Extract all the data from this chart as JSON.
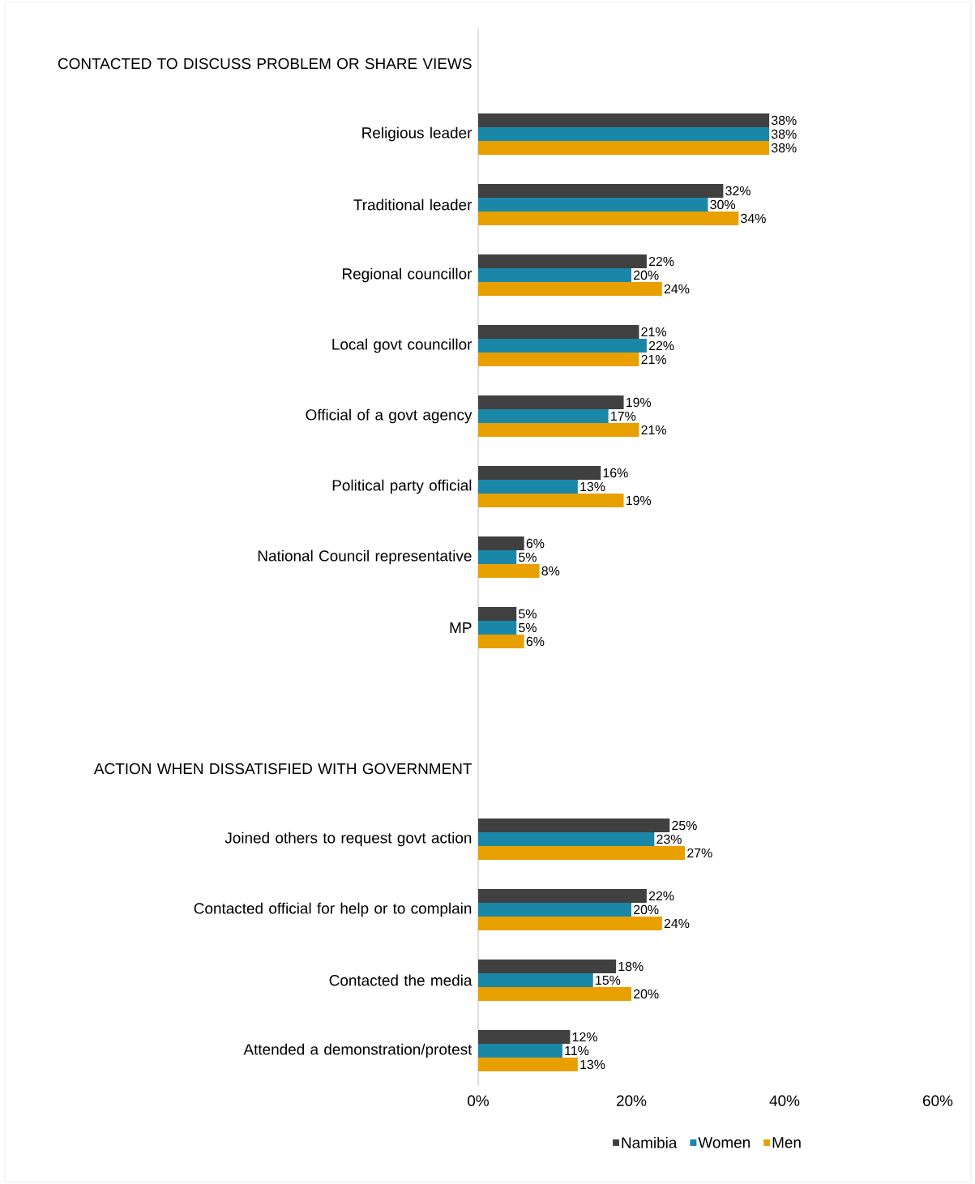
{
  "chart_data": {
    "type": "bar",
    "orientation": "horizontal",
    "categories": [
      "CONTACTED TO DISCUSS PROBLEM OR SHARE VIEWS",
      "Religious leader",
      "Traditional leader",
      "Regional councillor",
      "Local govt councillor",
      "Official of a govt agency",
      "Political party official",
      "National Council representative",
      "MP",
      null,
      "ACTION WHEN DISSATISFIED WITH GOVERNMENT",
      "Joined others to request govt action",
      "Contacted official for help or to complain",
      "Contacted the media",
      "Attended a demonstration/protest"
    ],
    "series": [
      {
        "name": "Namibia",
        "color": "#404040",
        "values": [
          null,
          38,
          32,
          22,
          21,
          19,
          16,
          6,
          5,
          null,
          null,
          25,
          22,
          18,
          12
        ],
        "value_labels": [
          null,
          "38%",
          "32%",
          "22%",
          "21%",
          "19%",
          "16%",
          "6%",
          "5%",
          null,
          null,
          "25%",
          "22%",
          "18%",
          "12%"
        ]
      },
      {
        "name": "Women",
        "color": "#1a87a8",
        "values": [
          null,
          38,
          30,
          20,
          22,
          17,
          13,
          5,
          5,
          null,
          null,
          23,
          20,
          15,
          11
        ],
        "value_labels": [
          null,
          "38%",
          "30%",
          "20%",
          "22%",
          "17%",
          "13%",
          "5%",
          "5%",
          null,
          null,
          "23%",
          "20%",
          "15%",
          "11%"
        ]
      },
      {
        "name": "Men",
        "color": "#e8a000",
        "values": [
          null,
          38,
          34,
          24,
          21,
          21,
          19,
          8,
          6,
          null,
          null,
          27,
          24,
          20,
          13
        ],
        "value_labels": [
          null,
          "38%",
          "34%",
          "24%",
          "21%",
          "21%",
          "19%",
          "8%",
          "6%",
          null,
          null,
          "27%",
          "24%",
          "20%",
          "13%"
        ]
      }
    ],
    "xlim": [
      0,
      60
    ],
    "xticks": [
      {
        "value": 0,
        "label": "0%"
      },
      {
        "value": 20,
        "label": "20%"
      },
      {
        "value": 40,
        "label": "40%"
      },
      {
        "value": 60,
        "label": "60%"
      }
    ],
    "legend": "bottom"
  }
}
